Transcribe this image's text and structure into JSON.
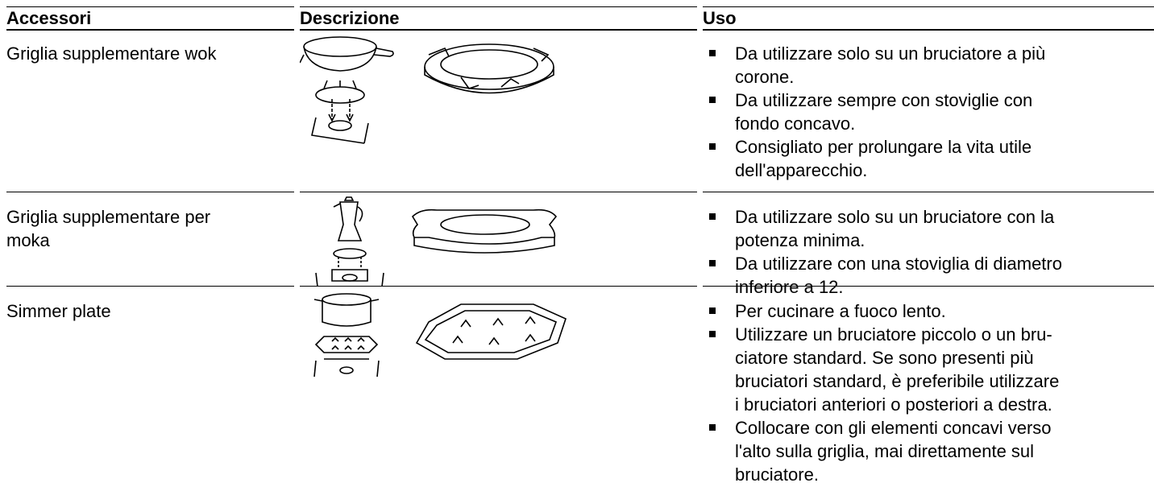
{
  "header": {
    "columns": [
      "Accessori",
      "Descrizione",
      "Uso"
    ]
  },
  "table": {
    "rows": [
      {
        "accessory": "Griglia supplementare wok",
        "uses": [
          [
            "Da utilizzare solo su un bruciatore a più",
            "corone."
          ],
          [
            "Da utilizzare sempre con stoviglie con",
            "fondo concavo."
          ],
          [
            "Consigliato per prolungare la vita utile",
            "dell'apparecchio."
          ]
        ]
      },
      {
        "accessory": "Griglia supplementare per moka",
        "uses": [
          [
            "Da utilizzare solo su un bruciatore con la",
            "potenza minima."
          ],
          [
            "Da utilizzare con una stoviglia di diametro",
            "inferiore a 12."
          ]
        ]
      },
      {
        "accessory": "Simmer plate",
        "uses": [
          [
            "Per cucinare a fuoco lento."
          ],
          [
            "Utilizzare un bruciatore piccolo o un bru-",
            "ciatore standard. Se sono presenti più",
            "bruciatori standard, è preferibile utilizzare",
            "i bruciatori anteriori o posteriori a destra."
          ],
          [
            "Collocare con gli elementi concavi verso",
            "l'alto sulla griglia, mai direttamente sul",
            "bruciatore."
          ]
        ]
      }
    ]
  }
}
